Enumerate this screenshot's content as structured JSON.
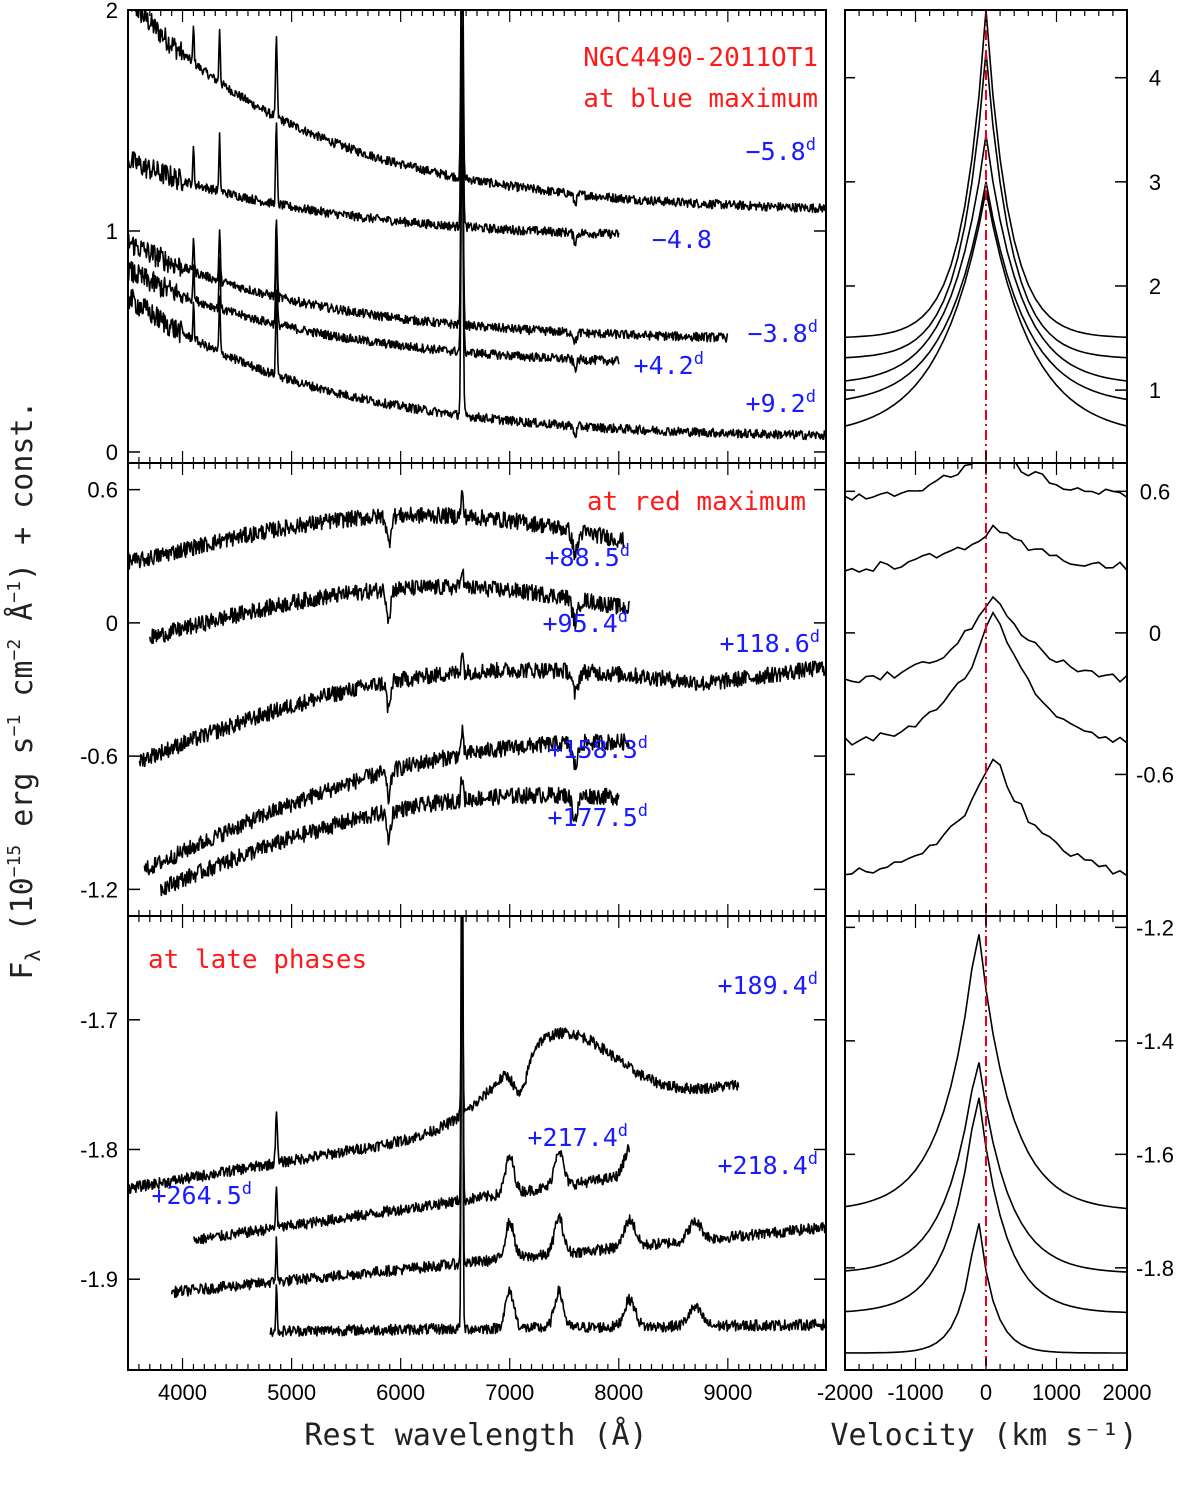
{
  "chart_data": {
    "type": "line",
    "xlabel": "Rest wavelength (Å)",
    "ylabel": "Fλ (10⁻¹⁵ erg s⁻¹ cm⁻² Å⁻¹) + const.",
    "ylabel_main": "F",
    "ylabel_sub": "λ",
    "ylabel_rest": " (10",
    "ylabel_exp1": "−15",
    "ylabel_mid": " erg s",
    "ylabel_exp2": "−1",
    "ylabel_mid2": " cm",
    "ylabel_exp3": "−2",
    "ylabel_mid3": " Å",
    "ylabel_exp4": "−1",
    "ylabel_end": ") + const.",
    "vel_xlabel": "Velocity (km s⁻¹)",
    "xlim": [
      3500,
      9900
    ],
    "xticks": [
      4000,
      5000,
      6000,
      7000,
      8000,
      9000
    ],
    "vel_xlim": [
      -2000,
      2000
    ],
    "vel_xticks": [
      -2000,
      -1000,
      0,
      1000,
      2000
    ],
    "vel_tick_labels": [
      "-2000",
      "-1000",
      "0",
      "1000",
      "2000"
    ],
    "panels": [
      {
        "name": "blue-maximum",
        "title_lines": [
          "NGC4490-2011OT1",
          "at blue maximum"
        ],
        "ylim": [
          -0.05,
          2.0
        ],
        "yticks": [
          0,
          1,
          2
        ],
        "vel_ylim": [
          0.3,
          4.65
        ],
        "vel_yticks": [
          1,
          2,
          3,
          4
        ],
        "series": [
          {
            "phase": "−5.8",
            "sup": "d",
            "x_start": 3500,
            "x_end": 9900,
            "blue_level": 2.05,
            "red_level": 1.08
          },
          {
            "phase": "−4.8",
            "sup": "",
            "x_start": 3500,
            "x_end": 8000,
            "blue_level": 1.32,
            "red_level": 0.96
          },
          {
            "phase": "−3.8",
            "sup": "d",
            "x_start": 3500,
            "x_end": 9000,
            "blue_level": 0.95,
            "red_level": 0.5
          },
          {
            "phase": "+4.2",
            "sup": "d",
            "x_start": 3500,
            "x_end": 8000,
            "blue_level": 0.82,
            "red_level": 0.38
          },
          {
            "phase": "+9.2",
            "sup": "d",
            "x_start": 3500,
            "x_end": 9900,
            "blue_level": 0.7,
            "red_level": 0.06
          }
        ],
        "vel_profiles": [
          {
            "base": 1.5,
            "peak": 4.65,
            "width": 330
          },
          {
            "base": 1.3,
            "peak": 4.25,
            "width": 360
          },
          {
            "base": 1.05,
            "peak": 3.45,
            "width": 480
          },
          {
            "base": 0.85,
            "peak": 3.0,
            "width": 560
          },
          {
            "base": 0.55,
            "peak": 2.92,
            "width": 640
          }
        ]
      },
      {
        "name": "red-maximum",
        "title_lines": [
          "at red maximum"
        ],
        "ylim": [
          -1.32,
          0.72
        ],
        "yticks": [
          0.6,
          0,
          -0.6,
          -1.2
        ],
        "vel_ylim": [
          -1.2,
          0.72
        ],
        "vel_yticks": [
          0.6,
          0,
          -0.6
        ],
        "series": [
          {
            "phase": "+88.5",
            "sup": "d",
            "x_start": 3500,
            "x_end": 8050,
            "blue_level": 0.28,
            "red_level": 0.28
          },
          {
            "phase": "+95.4",
            "sup": "d",
            "x_start": 3700,
            "x_end": 8100,
            "blue_level": -0.08,
            "red_level": -0.02
          },
          {
            "phase": "+118.6",
            "sup": "d",
            "x_start": 3600,
            "x_end": 9900,
            "blue_level": -0.62,
            "red_level": -0.2
          },
          {
            "phase": "+158.3",
            "sup": "d",
            "x_start": 3650,
            "x_end": 8100,
            "blue_level": -1.12,
            "red_level": -0.62
          },
          {
            "phase": "+177.5",
            "sup": "d",
            "x_start": 3800,
            "x_end": 8000,
            "blue_level": -1.22,
            "red_level": -0.88
          }
        ],
        "vel_profiles": [
          {
            "base": 0.56,
            "peak": 0.78,
            "width": 800
          },
          {
            "base": 0.26,
            "peak": 0.44,
            "width": 800
          },
          {
            "base": -0.22,
            "peak": 0.18,
            "width": 650
          },
          {
            "base": -0.48,
            "peak": 0.12,
            "width": 600
          },
          {
            "base": -1.05,
            "peak": -0.52,
            "width": 700
          }
        ]
      },
      {
        "name": "late-phases",
        "title_lines": [
          "at late phases"
        ],
        "ylim": [
          -1.97,
          -1.62
        ],
        "yticks": [
          -1.7,
          -1.8,
          -1.9
        ],
        "vel_ylim": [
          -1.98,
          -1.18
        ],
        "vel_yticks": [
          -1.2,
          -1.4,
          -1.6,
          -1.8
        ],
        "series": [
          {
            "phase": "+189.4",
            "sup": "d",
            "x_start": 3500,
            "x_end": 9100,
            "blue_level": -1.83,
            "red_level": -1.75
          },
          {
            "phase": "+217.4",
            "sup": "d",
            "x_start": 4100,
            "x_end": 8100,
            "blue_level": -1.87,
            "red_level": -1.82
          },
          {
            "phase": "+218.4",
            "sup": "d",
            "x_start": 3900,
            "x_end": 9900,
            "blue_level": -1.91,
            "red_level": -1.86
          },
          {
            "phase": "+264.5",
            "sup": "d",
            "x_start": 4800,
            "x_end": 9900,
            "blue_level": -1.94,
            "red_level": -1.935
          }
        ],
        "vel_profiles": [
          {
            "base": -1.7,
            "peak": -1.19,
            "width": 450
          },
          {
            "base": -1.81,
            "peak": -1.42,
            "width": 420
          },
          {
            "base": -1.88,
            "peak": -1.48,
            "width": 380
          },
          {
            "base": -1.95,
            "peak": -1.7,
            "width": 220
          }
        ]
      }
    ]
  },
  "annotations": {
    "title1": "NGC4490-2011OT1",
    "title2": "at blue maximum",
    "red_max": "at red maximum",
    "late": "at late phases"
  }
}
